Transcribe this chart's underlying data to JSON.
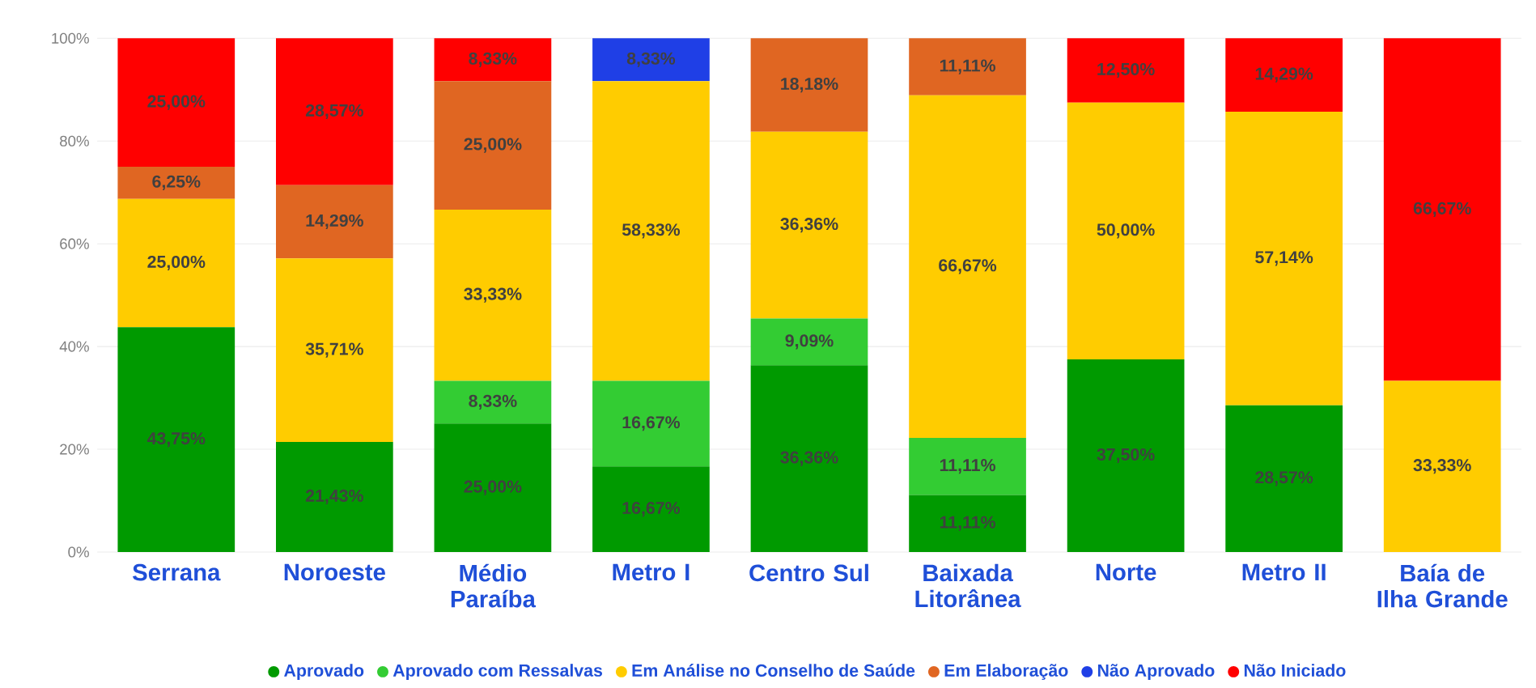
{
  "chart_data": {
    "type": "bar",
    "stacked": true,
    "categories": [
      "Serrana",
      "Noroeste",
      "Médio Paraíba",
      "Metro I",
      "Centro Sul",
      "Baixada Litorânea",
      "Norte",
      "Metro II",
      "Baía de Ilha Grande"
    ],
    "series": [
      {
        "name": "Aprovado",
        "color": "#009a00",
        "values": [
          43.75,
          21.43,
          25.0,
          16.67,
          36.36,
          11.11,
          37.5,
          28.57,
          null
        ],
        "value_labels": [
          "43,75%",
          "21,43%",
          "25,00%",
          "16,67%",
          "36,36%",
          "11,11%",
          "37,50%",
          "28,57%",
          null
        ]
      },
      {
        "name": "Aprovado com Ressalvas",
        "color": "#33cc33",
        "values": [
          null,
          null,
          8.33,
          16.67,
          9.09,
          11.11,
          null,
          null,
          null
        ],
        "value_labels": [
          null,
          null,
          "8,33%",
          "16,67%",
          "9,09%",
          "11,11%",
          null,
          null,
          null
        ]
      },
      {
        "name": "Em Análise no Conselho de Saúde",
        "color": "#ffcc00",
        "values": [
          25.0,
          35.71,
          33.33,
          58.33,
          36.36,
          66.67,
          50.0,
          57.14,
          33.33
        ],
        "value_labels": [
          "25,00%",
          "35,71%",
          "33,33%",
          "58,33%",
          "36,36%",
          "66,67%",
          "50,00%",
          "57,14%",
          "33,33%"
        ]
      },
      {
        "name": "Em Elaboração",
        "color": "#e06622",
        "values": [
          6.25,
          14.29,
          25.0,
          null,
          18.18,
          11.11,
          null,
          null,
          null
        ],
        "value_labels": [
          "6,25%",
          "14,29%",
          "25,00%",
          null,
          "18,18%",
          "11,11%",
          null,
          null,
          null
        ]
      },
      {
        "name": "Não Aprovado",
        "color": "#1f3fe6",
        "values": [
          null,
          null,
          null,
          8.33,
          null,
          null,
          null,
          null,
          null
        ],
        "value_labels": [
          null,
          null,
          null,
          "8,33%",
          null,
          null,
          null,
          null,
          null
        ]
      },
      {
        "name": "Não Iniciado",
        "color": "#ff0000",
        "values": [
          25.0,
          28.57,
          8.33,
          null,
          null,
          null,
          12.5,
          14.29,
          66.67
        ],
        "value_labels": [
          "25,00%",
          "28,57%",
          "8,33%",
          null,
          null,
          null,
          "12,50%",
          "14,29%",
          "66,67%"
        ]
      }
    ],
    "ylim": [
      0,
      100
    ],
    "yticks": [
      {
        "value": 0,
        "label": "0%"
      },
      {
        "value": 20,
        "label": "20%"
      },
      {
        "value": 40,
        "label": "40%"
      },
      {
        "value": 60,
        "label": "60%"
      },
      {
        "value": 80,
        "label": "80%"
      },
      {
        "value": 100,
        "label": "100%"
      }
    ],
    "grid": "y",
    "legend": "bottom",
    "marker": "circle"
  }
}
